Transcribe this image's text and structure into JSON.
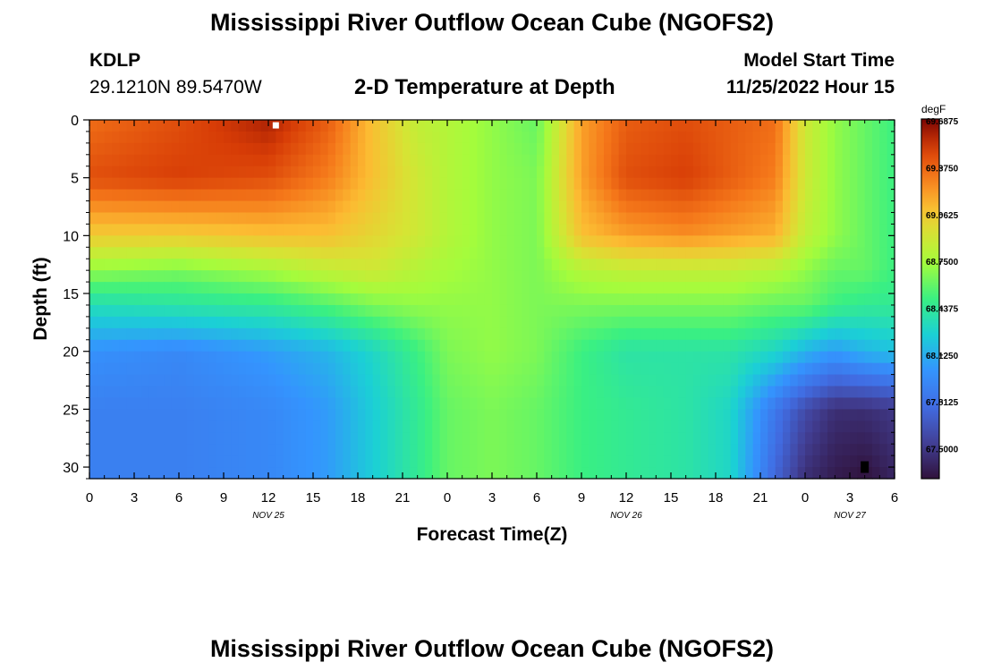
{
  "header": {
    "title": "Mississippi River Outflow Ocean Cube (NGOFS2)",
    "station_id": "KDLP",
    "station_coords": "29.1210N  89.5470W",
    "subtitle": "2-D Temperature at Depth",
    "model_label": "Model Start Time",
    "model_time": "11/25/2022 Hour 15"
  },
  "footer": {
    "title": "Mississippi River Outflow Ocean Cube (NGOFS2)"
  },
  "chart_data": {
    "type": "heatmap",
    "title": "2-D Temperature at Depth",
    "xlabel": "Forecast Time(Z)",
    "ylabel": "Depth (ft)",
    "x_hours_range": [
      0,
      54
    ],
    "xlim_hours_since_start": [
      0,
      54
    ],
    "ylim": [
      0,
      31
    ],
    "y_inverted": true,
    "x_ticks": [
      "0",
      "3",
      "6",
      "9",
      "12",
      "15",
      "18",
      "21",
      "0",
      "3",
      "6",
      "9",
      "12",
      "15",
      "18",
      "21",
      "0",
      "3",
      "6"
    ],
    "y_ticks": [
      "0",
      "5",
      "10",
      "15",
      "20",
      "25",
      "30"
    ],
    "date_labels": [
      {
        "text": "NOV 25",
        "hour": 12
      },
      {
        "text": "NOV 26",
        "hour": 36
      },
      {
        "text": "NOV 27",
        "hour": 51
      }
    ],
    "colorbar": {
      "unit": "degF",
      "min": 67.3,
      "max": 69.7,
      "tick_labels": [
        "69.6875",
        "69.3750",
        "69.0625",
        "68.7500",
        "68.4375",
        "68.1250",
        "67.8125",
        "67.5000"
      ],
      "tick_values": [
        69.6875,
        69.375,
        69.0625,
        68.75,
        68.4375,
        68.125,
        67.8125,
        67.5
      ]
    },
    "depths_ft": [
      0,
      5,
      10,
      13,
      16,
      20,
      25,
      31
    ],
    "times_hours": [
      0,
      6,
      12,
      16,
      19,
      22,
      24,
      27,
      30,
      33,
      36,
      40,
      43,
      46,
      48,
      50,
      52,
      54
    ],
    "temperature_degF": [
      [
        69.35,
        69.45,
        69.6,
        69.4,
        69.1,
        68.85,
        68.8,
        68.7,
        68.6,
        69.2,
        69.4,
        69.45,
        69.4,
        69.35,
        68.9,
        68.7,
        68.6,
        68.5
      ],
      [
        69.45,
        69.5,
        69.45,
        69.3,
        69.1,
        68.9,
        68.8,
        68.7,
        68.65,
        69.2,
        69.45,
        69.5,
        69.4,
        69.3,
        68.9,
        68.7,
        68.6,
        68.5
      ],
      [
        69.05,
        69.05,
        69.1,
        69.1,
        69.0,
        68.9,
        68.8,
        68.7,
        68.65,
        69.1,
        69.2,
        69.25,
        69.2,
        69.15,
        68.85,
        68.7,
        68.6,
        68.5
      ],
      [
        68.7,
        68.65,
        68.75,
        68.85,
        68.9,
        68.8,
        68.75,
        68.7,
        68.65,
        68.8,
        68.85,
        68.85,
        68.85,
        68.8,
        68.7,
        68.6,
        68.6,
        68.5
      ],
      [
        68.35,
        68.4,
        68.45,
        68.55,
        68.65,
        68.7,
        68.7,
        68.7,
        68.65,
        68.65,
        68.65,
        68.65,
        68.65,
        68.6,
        68.6,
        68.5,
        68.45,
        68.45
      ],
      [
        68.0,
        67.95,
        68.05,
        68.15,
        68.3,
        68.5,
        68.65,
        68.7,
        68.65,
        68.5,
        68.4,
        68.4,
        68.4,
        68.3,
        68.15,
        68.05,
        68.15,
        68.2
      ],
      [
        67.9,
        67.9,
        67.95,
        68.05,
        68.25,
        68.45,
        68.6,
        68.65,
        68.6,
        68.5,
        68.45,
        68.4,
        68.3,
        67.85,
        67.6,
        67.45,
        67.45,
        67.5
      ],
      [
        67.9,
        67.9,
        67.95,
        68.05,
        68.25,
        68.45,
        68.6,
        68.65,
        68.6,
        68.5,
        68.45,
        68.4,
        68.3,
        67.75,
        67.45,
        67.35,
        67.3,
        67.4
      ]
    ],
    "markers": [
      {
        "hour": 12.5,
        "depth_ft": 0.2,
        "color": "#ffffff"
      },
      {
        "hour": 52.0,
        "depth_ft": 30.0,
        "color": "#000000"
      }
    ]
  }
}
